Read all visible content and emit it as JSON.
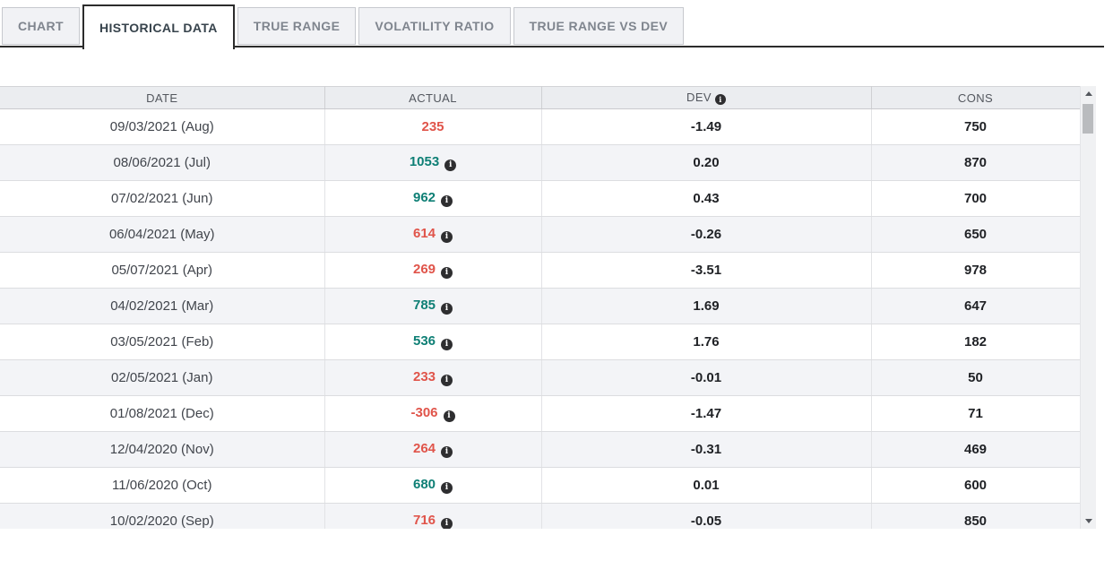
{
  "tabs": [
    {
      "label": "CHART",
      "active": false
    },
    {
      "label": "HISTORICAL DATA",
      "active": true
    },
    {
      "label": "TRUE RANGE",
      "active": false
    },
    {
      "label": "VOLATILITY RATIO",
      "active": false
    },
    {
      "label": "TRUE RANGE VS DEV",
      "active": false
    }
  ],
  "table": {
    "columns": [
      {
        "label": "DATE"
      },
      {
        "label": "ACTUAL"
      },
      {
        "label": "DEV",
        "info_icon": true
      },
      {
        "label": "CONS"
      }
    ],
    "rows": [
      {
        "date": "09/03/2021 (Aug)",
        "actual": "235",
        "sentiment": "negative",
        "info": false,
        "dev": "-1.49",
        "cons": "750"
      },
      {
        "date": "08/06/2021 (Jul)",
        "actual": "1053",
        "sentiment": "positive",
        "info": true,
        "dev": "0.20",
        "cons": "870"
      },
      {
        "date": "07/02/2021 (Jun)",
        "actual": "962",
        "sentiment": "positive",
        "info": true,
        "dev": "0.43",
        "cons": "700"
      },
      {
        "date": "06/04/2021 (May)",
        "actual": "614",
        "sentiment": "negative",
        "info": true,
        "dev": "-0.26",
        "cons": "650"
      },
      {
        "date": "05/07/2021 (Apr)",
        "actual": "269",
        "sentiment": "negative",
        "info": true,
        "dev": "-3.51",
        "cons": "978"
      },
      {
        "date": "04/02/2021 (Mar)",
        "actual": "785",
        "sentiment": "positive",
        "info": true,
        "dev": "1.69",
        "cons": "647"
      },
      {
        "date": "03/05/2021 (Feb)",
        "actual": "536",
        "sentiment": "positive",
        "info": true,
        "dev": "1.76",
        "cons": "182"
      },
      {
        "date": "02/05/2021 (Jan)",
        "actual": "233",
        "sentiment": "negative",
        "info": true,
        "dev": "-0.01",
        "cons": "50"
      },
      {
        "date": "01/08/2021 (Dec)",
        "actual": "-306",
        "sentiment": "negative",
        "info": true,
        "dev": "-1.47",
        "cons": "71"
      },
      {
        "date": "12/04/2020 (Nov)",
        "actual": "264",
        "sentiment": "negative",
        "info": true,
        "dev": "-0.31",
        "cons": "469"
      },
      {
        "date": "11/06/2020 (Oct)",
        "actual": "680",
        "sentiment": "positive",
        "info": true,
        "dev": "0.01",
        "cons": "600"
      },
      {
        "date": "10/02/2020 (Sep)",
        "actual": "716",
        "sentiment": "negative",
        "info": true,
        "dev": "-0.05",
        "cons": "850"
      }
    ]
  },
  "colors": {
    "positive": "#0e7f75",
    "negative": "#e0544a",
    "tab_active_border": "#2c2c2c",
    "row_alt_background": "#f3f4f7",
    "header_background": "#ebedf0"
  }
}
